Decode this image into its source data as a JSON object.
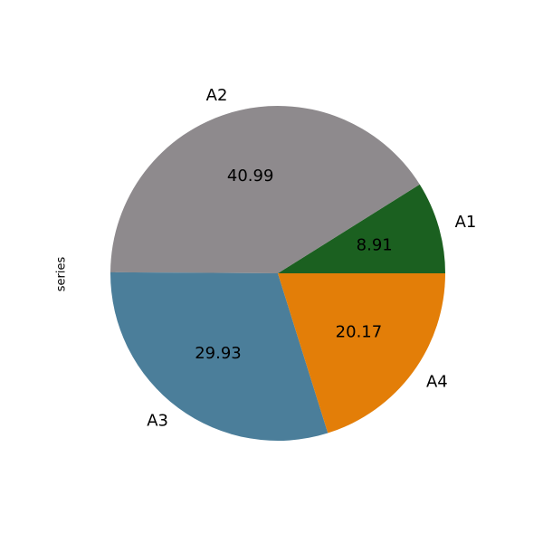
{
  "chart_data": {
    "type": "pie",
    "title": "",
    "ylabel": "series",
    "categories": [
      "A1",
      "A2",
      "A3",
      "A4"
    ],
    "values": [
      8.91,
      40.99,
      29.93,
      20.17
    ],
    "value_labels": [
      "8.91",
      "40.99",
      "29.93",
      "20.17"
    ],
    "colors": [
      "#1b6020",
      "#8e8a8d",
      "#4b7e9a",
      "#e37e08"
    ],
    "start_angle_deg": 0,
    "direction": "counterclockwise",
    "legend": "none"
  }
}
